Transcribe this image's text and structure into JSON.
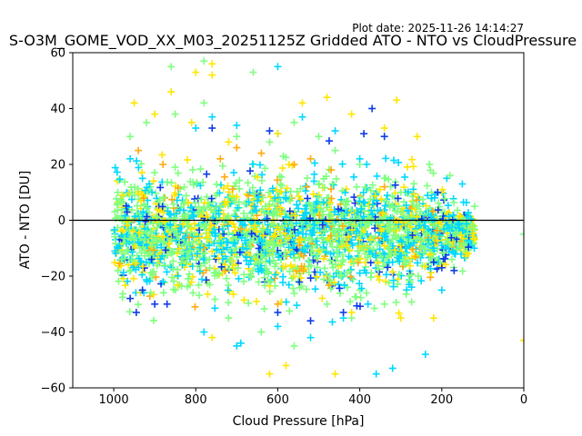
{
  "plot_date": "Plot date: 2025-11-26 14:14:27",
  "chart_data": {
    "type": "scatter",
    "title": "S-O3M_GOME_VOD_XX_M03_20251125Z Gridded ATO - NTO vs CloudPressure",
    "xlabel": "Cloud Pressure [hPa]",
    "ylabel": "ATO - NTO [DU]",
    "xlim": [
      1100,
      0
    ],
    "ylim": [
      -60,
      60
    ],
    "xticks": [
      1000,
      800,
      600,
      400,
      200,
      0
    ],
    "yticks": [
      -60,
      -40,
      -20,
      0,
      20,
      40,
      60
    ],
    "marker": "+",
    "reference_line_y": 0,
    "cloud": {
      "x_range": [
        1000,
        120
      ],
      "y_center": -5,
      "y_spread": 22
    },
    "series": [
      {
        "name": "lime",
        "color": "#7fff7f",
        "points": [
          [
            990,
            10
          ],
          [
            960,
            30
          ],
          [
            920,
            35
          ],
          [
            850,
            38
          ],
          [
            780,
            42
          ],
          [
            700,
            30
          ],
          [
            620,
            28
          ],
          [
            560,
            35
          ],
          [
            500,
            30
          ],
          [
            460,
            25
          ],
          [
            400,
            20
          ],
          [
            340,
            15
          ],
          [
            300,
            10
          ],
          [
            260,
            5
          ],
          [
            230,
            20
          ],
          [
            180,
            16
          ],
          [
            120,
            5
          ],
          [
            0,
            -5
          ],
          [
            850,
            -25
          ],
          [
            720,
            -35
          ],
          [
            640,
            -40
          ],
          [
            560,
            -45
          ],
          [
            480,
            -30
          ],
          [
            420,
            -35
          ],
          [
            340,
            -30
          ],
          [
            280,
            -20
          ],
          [
            860,
            55
          ],
          [
            780,
            57
          ],
          [
            660,
            53
          ]
        ]
      },
      {
        "name": "cyan",
        "color": "#00d8ff",
        "points": [
          [
            990,
            -10
          ],
          [
            960,
            22
          ],
          [
            930,
            15
          ],
          [
            880,
            -22
          ],
          [
            800,
            33
          ],
          [
            760,
            37
          ],
          [
            700,
            34
          ],
          [
            600,
            31
          ],
          [
            540,
            37
          ],
          [
            460,
            32
          ],
          [
            400,
            22
          ],
          [
            320,
            -15
          ],
          [
            280,
            -23
          ],
          [
            240,
            -48
          ],
          [
            220,
            -10
          ],
          [
            200,
            -25
          ],
          [
            150,
            13
          ],
          [
            780,
            -40
          ],
          [
            700,
            -45
          ],
          [
            600,
            -38
          ],
          [
            520,
            -42
          ],
          [
            440,
            -35
          ],
          [
            380,
            -30
          ],
          [
            360,
            -55
          ],
          [
            320,
            -53
          ],
          [
            690,
            -44
          ],
          [
            600,
            55
          ]
        ]
      },
      {
        "name": "yellow",
        "color": "#ffe600",
        "points": [
          [
            950,
            42
          ],
          [
            900,
            38
          ],
          [
            860,
            46
          ],
          [
            810,
            35
          ],
          [
            760,
            52
          ],
          [
            720,
            28
          ],
          [
            600,
            31
          ],
          [
            540,
            42
          ],
          [
            480,
            44
          ],
          [
            420,
            38
          ],
          [
            340,
            33
          ],
          [
            310,
            43
          ],
          [
            260,
            30
          ],
          [
            220,
            -35
          ],
          [
            200,
            10
          ],
          [
            760,
            -42
          ],
          [
            620,
            -55
          ],
          [
            580,
            -52
          ],
          [
            460,
            -55
          ],
          [
            420,
            -33
          ],
          [
            300,
            -35
          ],
          [
            0,
            -43
          ],
          [
            760,
            56
          ],
          [
            800,
            53
          ]
        ]
      },
      {
        "name": "orange",
        "color": "#ffab0f",
        "points": [
          [
            940,
            25
          ],
          [
            880,
            20
          ],
          [
            740,
            22
          ],
          [
            640,
            24
          ],
          [
            560,
            20
          ],
          [
            520,
            22
          ],
          [
            470,
            18
          ],
          [
            340,
            12
          ],
          [
            600,
            -30
          ],
          [
            700,
            26
          ]
        ]
      },
      {
        "name": "blue",
        "color": "#0d3be8",
        "points": [
          [
            960,
            -28
          ],
          [
            945,
            -33
          ],
          [
            930,
            -25
          ],
          [
            900,
            -30
          ],
          [
            870,
            -30
          ],
          [
            760,
            33
          ],
          [
            620,
            32
          ],
          [
            600,
            -33
          ],
          [
            520,
            -36
          ],
          [
            440,
            -33
          ],
          [
            390,
            31
          ],
          [
            370,
            40
          ],
          [
            340,
            30
          ],
          [
            210,
            10
          ],
          [
            200,
            -17
          ],
          [
            170,
            -18
          ],
          [
            220,
            -15
          ]
        ]
      }
    ]
  }
}
